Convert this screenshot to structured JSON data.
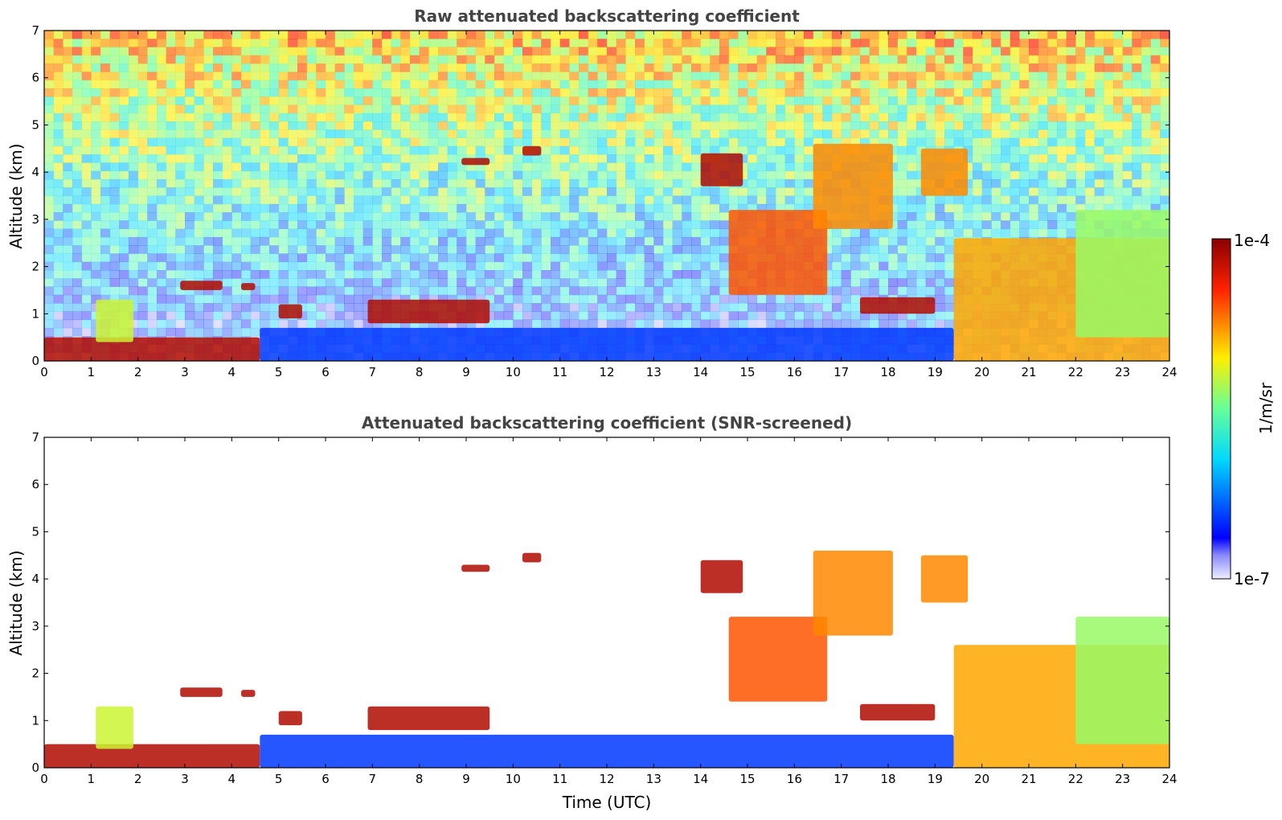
{
  "chart_data": [
    {
      "type": "heatmap",
      "title": "Raw attenuated backscattering coefficient",
      "xlabel": "",
      "ylabel": "Altitude (km)",
      "xlim": [
        0,
        24
      ],
      "ylim": [
        0,
        7
      ],
      "x_ticks": [
        "0",
        "1",
        "2",
        "3",
        "4",
        "5",
        "6",
        "7",
        "8",
        "9",
        "10",
        "11",
        "12",
        "13",
        "14",
        "15",
        "16",
        "17",
        "18",
        "19",
        "20",
        "21",
        "22",
        "23",
        "24"
      ],
      "y_ticks": [
        "0",
        "1",
        "2",
        "3",
        "4",
        "5",
        "6",
        "7"
      ],
      "layers": [
        {
          "t0": 0.0,
          "t1": 4.6,
          "z0": 0.0,
          "z1": 0.5,
          "level": 0.95
        },
        {
          "t0": 1.1,
          "t1": 1.9,
          "z0": 0.4,
          "z1": 1.3,
          "level": 0.6
        },
        {
          "t0": 2.9,
          "t1": 3.8,
          "z0": 1.5,
          "z1": 1.7,
          "level": 0.95
        },
        {
          "t0": 4.2,
          "t1": 4.5,
          "z0": 1.5,
          "z1": 1.65,
          "level": 0.95
        },
        {
          "t0": 5.0,
          "t1": 5.5,
          "z0": 0.9,
          "z1": 1.2,
          "level": 0.95
        },
        {
          "t0": 6.9,
          "t1": 9.5,
          "z0": 0.8,
          "z1": 1.3,
          "level": 0.95
        },
        {
          "t0": 8.9,
          "t1": 9.5,
          "z0": 4.15,
          "z1": 4.3,
          "level": 0.95
        },
        {
          "t0": 10.2,
          "t1": 10.6,
          "z0": 4.35,
          "z1": 4.55,
          "level": 0.95
        },
        {
          "t0": 14.0,
          "t1": 14.9,
          "z0": 3.7,
          "z1": 4.4,
          "level": 0.95
        },
        {
          "t0": 14.6,
          "t1": 16.7,
          "z0": 1.4,
          "z1": 3.2,
          "level": 0.8
        },
        {
          "t0": 16.4,
          "t1": 18.1,
          "z0": 2.8,
          "z1": 4.6,
          "level": 0.75
        },
        {
          "t0": 18.7,
          "t1": 19.7,
          "z0": 3.5,
          "z1": 4.5,
          "level": 0.75
        },
        {
          "t0": 17.4,
          "t1": 19.0,
          "z0": 1.0,
          "z1": 1.35,
          "level": 0.95
        },
        {
          "t0": 19.4,
          "t1": 24.0,
          "z0": 0.0,
          "z1": 2.6,
          "level": 0.72
        },
        {
          "t0": 22.0,
          "t1": 24.0,
          "z0": 0.5,
          "z1": 3.2,
          "level": 0.55
        },
        {
          "t0": 4.6,
          "t1": 19.4,
          "z0": 0.0,
          "z1": 0.7,
          "level": 0.18
        }
      ],
      "background_noise": true
    },
    {
      "type": "heatmap",
      "title": "Attenuated backscattering coefficient (SNR-screened)",
      "xlabel": "Time (UTC)",
      "ylabel": "Altitude (km)",
      "xlim": [
        0,
        24
      ],
      "ylim": [
        0,
        7
      ],
      "x_ticks": [
        "0",
        "1",
        "2",
        "3",
        "4",
        "5",
        "6",
        "7",
        "8",
        "9",
        "10",
        "11",
        "12",
        "13",
        "14",
        "15",
        "16",
        "17",
        "18",
        "19",
        "20",
        "21",
        "22",
        "23",
        "24"
      ],
      "y_ticks": [
        "0",
        "1",
        "2",
        "3",
        "4",
        "5",
        "6",
        "7"
      ],
      "layers": [
        {
          "t0": 0.0,
          "t1": 4.6,
          "z0": 0.0,
          "z1": 0.5,
          "level": 0.95
        },
        {
          "t0": 1.1,
          "t1": 1.9,
          "z0": 0.4,
          "z1": 1.3,
          "level": 0.6
        },
        {
          "t0": 2.9,
          "t1": 3.8,
          "z0": 1.5,
          "z1": 1.7,
          "level": 0.95
        },
        {
          "t0": 4.2,
          "t1": 4.5,
          "z0": 1.5,
          "z1": 1.65,
          "level": 0.95
        },
        {
          "t0": 5.0,
          "t1": 5.5,
          "z0": 0.9,
          "z1": 1.2,
          "level": 0.95
        },
        {
          "t0": 6.9,
          "t1": 9.5,
          "z0": 0.8,
          "z1": 1.3,
          "level": 0.95
        },
        {
          "t0": 8.9,
          "t1": 9.5,
          "z0": 4.15,
          "z1": 4.3,
          "level": 0.95
        },
        {
          "t0": 10.2,
          "t1": 10.6,
          "z0": 4.35,
          "z1": 4.55,
          "level": 0.95
        },
        {
          "t0": 14.0,
          "t1": 14.9,
          "z0": 3.7,
          "z1": 4.4,
          "level": 0.95
        },
        {
          "t0": 14.6,
          "t1": 16.7,
          "z0": 1.4,
          "z1": 3.2,
          "level": 0.8
        },
        {
          "t0": 16.4,
          "t1": 18.1,
          "z0": 2.8,
          "z1": 4.6,
          "level": 0.75
        },
        {
          "t0": 18.7,
          "t1": 19.7,
          "z0": 3.5,
          "z1": 4.5,
          "level": 0.75
        },
        {
          "t0": 17.4,
          "t1": 19.0,
          "z0": 1.0,
          "z1": 1.35,
          "level": 0.95
        },
        {
          "t0": 19.4,
          "t1": 24.0,
          "z0": 0.0,
          "z1": 2.6,
          "level": 0.72
        },
        {
          "t0": 22.0,
          "t1": 24.0,
          "z0": 0.5,
          "z1": 3.2,
          "level": 0.55
        },
        {
          "t0": 4.6,
          "t1": 19.4,
          "z0": 0.0,
          "z1": 0.7,
          "level": 0.18
        }
      ],
      "background_noise": false
    }
  ],
  "colorbar": {
    "max_label": "1e-4",
    "min_label": "1e-7",
    "unit_label": "1/m/sr",
    "colormap": "jet",
    "scale": "log"
  },
  "colors": {
    "title": "#444444",
    "frame": "#000000",
    "saturated_layer": "#7a0000"
  }
}
